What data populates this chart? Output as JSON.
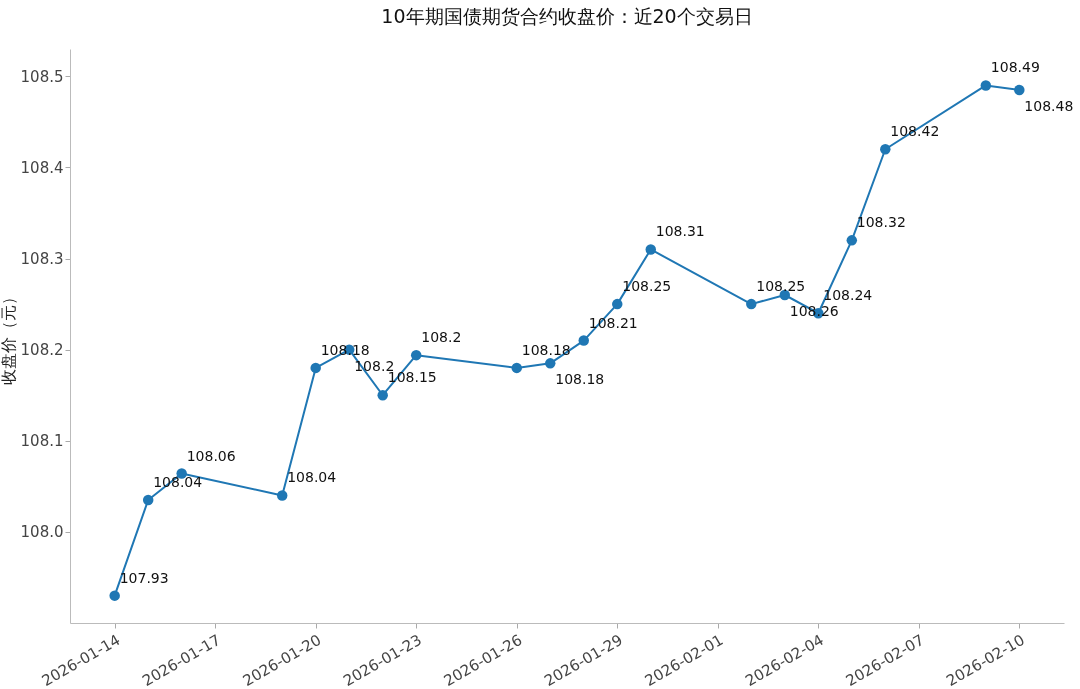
{
  "chart_data": {
    "type": "line",
    "title": "10年期国债期货合约收盘价：近20个交易日",
    "ylabel": "收盘价（元）",
    "x": [
      "2026-01-14",
      "2026-01-15",
      "2026-01-16",
      "2026-01-19",
      "2026-01-20",
      "2026-01-21",
      "2026-01-22",
      "2026-01-23",
      "2026-01-26",
      "2026-01-27",
      "2026-01-28",
      "2026-01-29",
      "2026-01-30",
      "2026-02-02",
      "2026-02-03",
      "2026-02-04",
      "2026-02-05",
      "2026-02-06",
      "2026-02-09",
      "2026-02-10"
    ],
    "series": [
      {
        "color": "#1f77b4",
        "values": [
          107.93,
          108.035,
          108.064,
          108.04,
          108.18,
          108.2,
          108.15,
          108.194,
          108.18,
          108.185,
          108.21,
          108.25,
          108.31,
          108.25,
          108.26,
          108.24,
          108.32,
          108.42,
          108.49,
          108.485
        ],
        "value_labels": [
          "107.93",
          "108.04",
          "108.06",
          "108.04",
          "108.18",
          "108.2",
          "108.15",
          "108.2",
          "108.18",
          "108.18",
          "108.21",
          "108.25",
          "108.31",
          "108.25",
          "108.26",
          "108.24",
          "108.32",
          "108.42",
          "108.49",
          "108.48"
        ]
      }
    ],
    "xlim": [
      "2026-01-12T16:00",
      "2026-02-11T08:00"
    ],
    "xticks": [
      "2026-01-14",
      "2026-01-17",
      "2026-01-20",
      "2026-01-23",
      "2026-01-26",
      "2026-01-29",
      "2026-02-01",
      "2026-02-04",
      "2026-02-07",
      "2026-02-10"
    ],
    "ylim": [
      107.9,
      108.53
    ],
    "yticks": [
      {
        "value": 108,
        "label": "108.0"
      },
      108.1,
      108.2,
      108.3,
      108.4,
      108.5
    ],
    "grid": false,
    "marker": "circle",
    "line_style": "solid"
  }
}
